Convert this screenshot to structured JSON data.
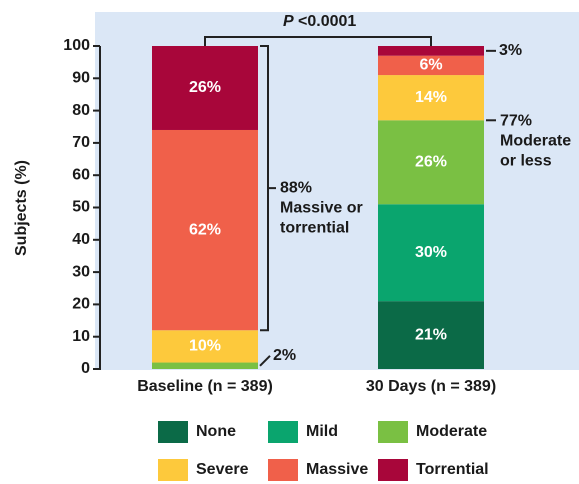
{
  "chart_data": {
    "type": "stacked_bar",
    "ylabel": "Subjects (%)",
    "categories": [
      "Baseline (n = 389)",
      "30 Days (n = 389)"
    ],
    "series": [
      {
        "name": "None",
        "color": "#0b6a47",
        "values": [
          0,
          21
        ],
        "value_labels": [
          null,
          "21%"
        ]
      },
      {
        "name": "Mild",
        "color": "#0aa56e",
        "values": [
          0,
          30
        ],
        "value_labels": [
          null,
          "30%"
        ]
      },
      {
        "name": "Moderate",
        "color": "#7ac043",
        "values": [
          2,
          26
        ],
        "value_labels": [
          "2%",
          "26%"
        ]
      },
      {
        "name": "Severe",
        "color": "#fdc93c",
        "values": [
          10,
          14
        ],
        "value_labels": [
          "10%",
          "14%"
        ]
      },
      {
        "name": "Massive",
        "color": "#f0604a",
        "values": [
          62,
          6
        ],
        "value_labels": [
          "62%",
          "6%"
        ]
      },
      {
        "name": "Torrential",
        "color": "#a8063a",
        "values": [
          26,
          3
        ],
        "value_labels": [
          "26%",
          "3%"
        ]
      }
    ],
    "ylim": [
      0,
      100
    ],
    "yticks": [
      0,
      10,
      20,
      30,
      40,
      50,
      60,
      70,
      80,
      90,
      100
    ],
    "p_value": {
      "symbol": "P",
      "text": "<0.0001"
    },
    "bracket_labels": [
      [
        "88%",
        "Massive or",
        "torrential"
      ],
      [
        "77%",
        "Moderate",
        "or less"
      ]
    ]
  }
}
